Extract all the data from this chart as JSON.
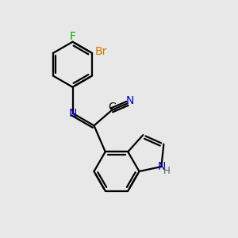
{
  "bg_color": "#e8e8e8",
  "atom_colors": {
    "N": "#0000cc",
    "Br": "#cc7700",
    "F": "#00aa00",
    "C": "#000000",
    "H": "#555555"
  },
  "bond_color": "#000000",
  "bond_width": 1.6,
  "font_size_main": 10,
  "font_size_small": 8.5
}
